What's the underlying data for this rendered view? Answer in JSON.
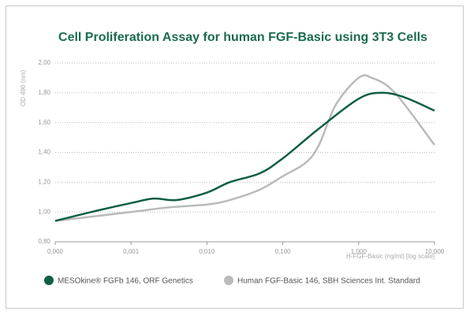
{
  "chart_data": {
    "type": "line",
    "title": "Cell Proliferation Assay for human FGF-Basic using 3T3 Cells",
    "x_label": "H-FGF-Basic (ng/ml)  [log scale]",
    "y_label": "OD 490 (nm)",
    "xscale": "log",
    "xlim": [
      0.0001,
      10
    ],
    "xticks": [
      {
        "value": 0.0001,
        "label": "0,000"
      },
      {
        "value": 0.001,
        "label": "0,001"
      },
      {
        "value": 0.01,
        "label": "0,010"
      },
      {
        "value": 0.1,
        "label": "0,100"
      },
      {
        "value": 1,
        "label": "1,000"
      },
      {
        "value": 10,
        "label": "10,000"
      }
    ],
    "ylim": [
      0.8,
      2.0
    ],
    "yticks": [
      {
        "value": 0.8,
        "label": "0,80"
      },
      {
        "value": 1.0,
        "label": "1,00"
      },
      {
        "value": 1.2,
        "label": "1,20"
      },
      {
        "value": 1.4,
        "label": "1,40"
      },
      {
        "value": 1.6,
        "label": "1,60"
      },
      {
        "value": 1.8,
        "label": "1,80"
      },
      {
        "value": 2.0,
        "label": "2,00"
      }
    ],
    "grid": true,
    "legend": "bottom",
    "series": [
      {
        "name": "MESOkine® FGFb 146, ORF Genetics",
        "color": "#0f5e45",
        "x": [
          0.0001,
          0.0003,
          0.001,
          0.002,
          0.004,
          0.01,
          0.02,
          0.05,
          0.1,
          0.3,
          1,
          2,
          4,
          10
        ],
        "values": [
          0.94,
          1.0,
          1.06,
          1.09,
          1.08,
          1.13,
          1.2,
          1.26,
          1.36,
          1.56,
          1.76,
          1.8,
          1.77,
          1.68
        ]
      },
      {
        "name": "Human FGF-Basic 146, SBH Sciences Int. Standard",
        "color": "#b9bbba",
        "x": [
          0.0001,
          0.001,
          0.003,
          0.01,
          0.02,
          0.05,
          0.1,
          0.2,
          0.3,
          0.5,
          1,
          1.5,
          3,
          10
        ],
        "values": [
          0.94,
          1.0,
          1.03,
          1.05,
          1.08,
          1.15,
          1.24,
          1.33,
          1.45,
          1.72,
          1.9,
          1.9,
          1.8,
          1.45
        ]
      }
    ]
  }
}
